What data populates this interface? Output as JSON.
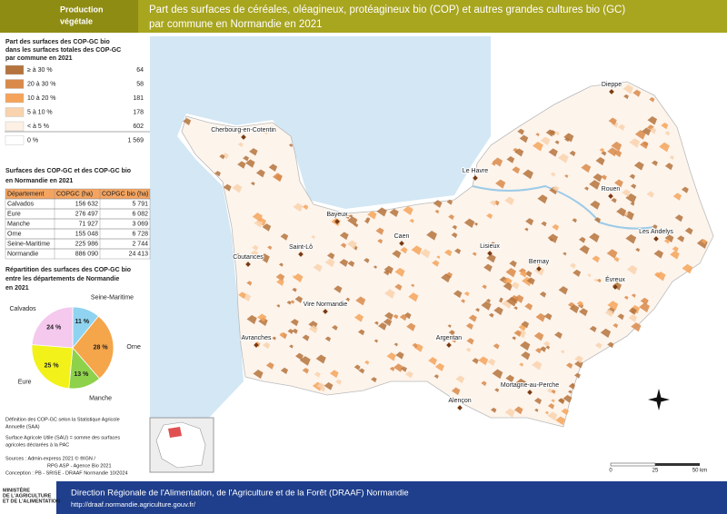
{
  "header": {
    "tag": [
      "Production",
      "végétale"
    ],
    "title": [
      "Part des surfaces de céréales, oléagineux, protéagineux bio (COP) et autres grandes cultures bio (GC)",
      "par commune en Normandie en 2021"
    ]
  },
  "legend": {
    "title": [
      "Part des surfaces des COP-GC bio",
      "dans les surfaces totales des COP-GC",
      "par  commune en 2021"
    ],
    "classes": [
      {
        "label": "≥ à 30 %",
        "count": "64",
        "color": "#b5733d"
      },
      {
        "label": "20 à 30 %",
        "count": "58",
        "color": "#d9894a"
      },
      {
        "label": "10 à 20 %",
        "count": "181",
        "color": "#f5a35a"
      },
      {
        "label": "5 à 10 %",
        "count": "178",
        "color": "#f9d2ae"
      },
      {
        "label": "< à 5 %",
        "count": "602",
        "color": "#fdf0e4"
      },
      {
        "label": "0 %",
        "count": "1 569",
        "color": "#ffffff"
      }
    ]
  },
  "table": {
    "title": [
      "Surfaces des COP-GC et des COP-GC bio",
      "en Normandie en 2021"
    ],
    "header": [
      "Département",
      "COPGC (ha)",
      "COPGC bio (ha)"
    ],
    "rows": [
      [
        "Calvados",
        "156 632",
        "5 791"
      ],
      [
        "Eure",
        "276 497",
        "6 082"
      ],
      [
        "Manche",
        "71 927",
        "3 069"
      ],
      [
        "Orne",
        "155 048",
        "6 728"
      ],
      [
        "Seine-Maritime",
        "225 986",
        "2 744"
      ],
      [
        "Normandie",
        "886 090",
        "24 413"
      ]
    ]
  },
  "pie": {
    "title": [
      "Répartition des surfaces des COP-GC bio",
      "entre les départements de Normandie",
      "en 2021"
    ],
    "categories": [
      "Seine-Maritime",
      "Orne",
      "Manche",
      "Eure",
      "Calvados"
    ],
    "values": [
      11,
      28,
      13,
      25,
      24
    ],
    "value_labels": [
      "11 %",
      "28 %",
      "13 %",
      "25 %",
      "24 %"
    ],
    "colors": [
      "#8fd3f0",
      "#f5a54a",
      "#8ed14a",
      "#f2f21a",
      "#f5c8ee"
    ]
  },
  "cities": [
    "Cherbourg-en-Cotentin",
    "Dieppe",
    "Le Havre",
    "Rouen",
    "Bayeux",
    "Caen",
    "Saint-Lô",
    "Lisieux",
    "Les Andelys",
    "Coutances",
    "Bernay",
    "Évreux",
    "Vire Normandie",
    "Avranches",
    "Argentan",
    "Mortagne-au-Perche",
    "Alençon"
  ],
  "notes": [
    "Définition des COP-GC selon la Statistique Agricole",
    "Annuelle (SAA)",
    "Surface Agricole Utile (SAU) = somme des surfaces",
    "agricoles déclarées à la PAC",
    "Sources        : Admin-express 2021 © ®IGN /",
    "RPG ASP - Agence Bio 2021",
    "Conception : PB - SRISE - DRAAF Normandie 10/2024"
  ],
  "scale": [
    "0",
    "25",
    "50 km"
  ],
  "footer": {
    "ministry": [
      "MINISTÈRE",
      "DE L'AGRICULTURE",
      "ET DE L'ALIMENTATION"
    ],
    "org": "Direction Régionale de l'Alimentation, de l'Agriculture et de la Forêt (DRAAF) Normandie",
    "url": "http://draaf.normandie.agriculture.gouv.fr/"
  }
}
